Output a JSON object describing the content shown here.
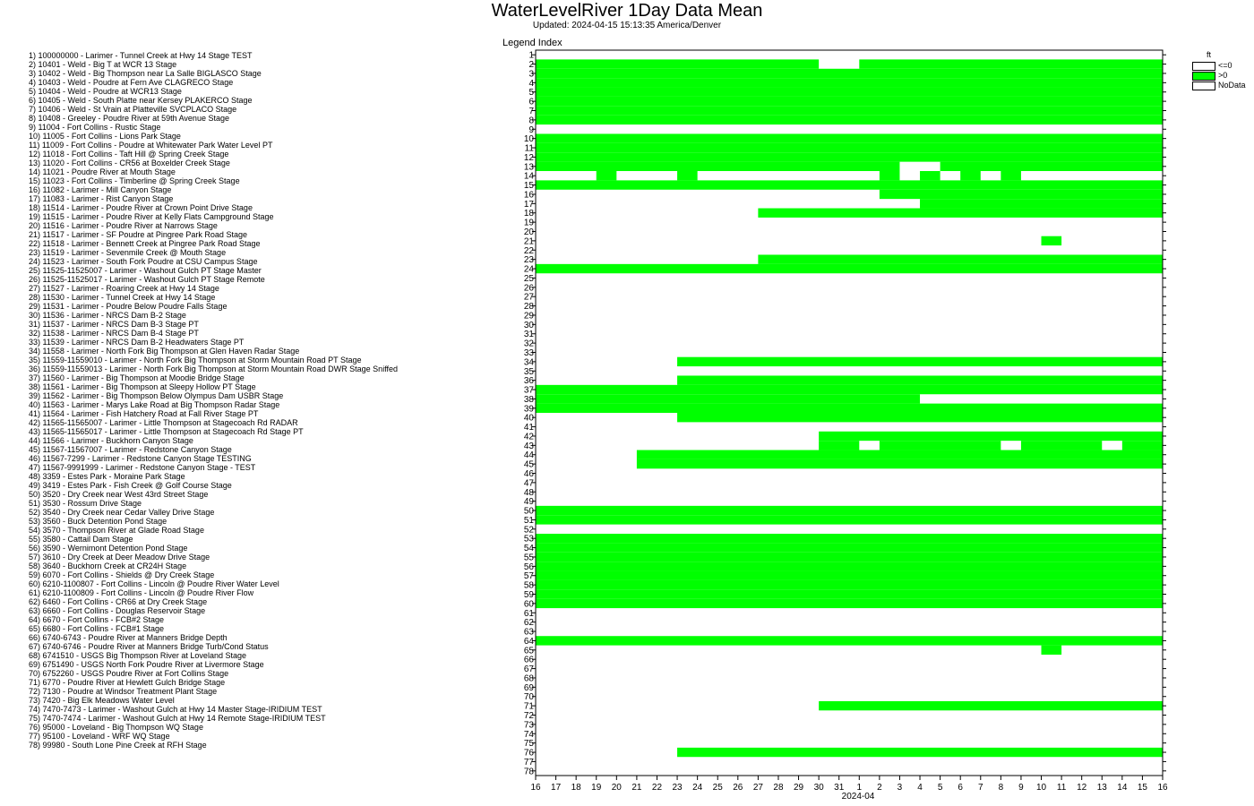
{
  "header": {
    "title": "WaterLevelRiver 1Day Data Mean",
    "subtitle": "Updated: 2024-04-15 15:13:35 America/Denver",
    "legend_index_label": "Legend Index"
  },
  "legend": {
    "units": "ft",
    "entries": [
      {
        "label": "<=0",
        "color": "#ffffff"
      },
      {
        "label": ">0",
        "color": "#00ff00"
      },
      {
        "label": "NoData",
        "color": "#ffffff"
      }
    ]
  },
  "series_list": [
    "1) 100000000 - Larimer - Tunnel Creek at Hwy 14 Stage TEST",
    "2) 10401 - Weld - Big T at WCR 13 Stage",
    "3) 10402 - Weld - Big Thompson near La Salle BIGLASCO Stage",
    "4) 10403 - Weld - Poudre at Fern Ave CLAGRECO Stage",
    "5) 10404 - Weld - Poudre at WCR13 Stage",
    "6) 10405 - Weld - South Platte near Kersey PLAKERCO Stage",
    "7) 10406 - Weld - St Vrain at Platteville SVCPLACO Stage",
    "8) 10408 - Greeley - Poudre River at 59th Avenue Stage",
    "9) 11004 - Fort Collins - Rustic Stage",
    "10) 11005 - Fort Collins - Lions Park Stage",
    "11) 11009 - Fort Collins - Poudre at Whitewater Park Water Level PT",
    "12) 11018 - Fort Collins - Taft Hill @ Spring Creek Stage",
    "13) 11020 - Fort Collins - CR56 at Boxelder Creek Stage",
    "14) 11021 - Poudre River at Mouth Stage",
    "15) 11023 - Fort Collins - Timberline @ Spring Creek Stage",
    "16) 11082 - Larimer - Mill Canyon Stage",
    "17) 11083 - Larimer - Rist Canyon Stage",
    "18) 11514 - Larimer - Poudre River at Crown Point Drive Stage",
    "19) 11515 - Larimer - Poudre River at Kelly Flats Campground Stage",
    "20) 11516 - Larimer - Poudre River at Narrows Stage",
    "21) 11517 - Larimer - SF Poudre at Pingree Park Road Stage",
    "22) 11518 - Larimer - Bennett Creek at Pingree Park Road Stage",
    "23) 11519 - Larimer - Sevenmile Creek @ Mouth Stage",
    "24) 11523 - Larimer - South Fork Poudre at CSU Campus Stage",
    "25) 11525-11525007 - Larimer - Washout Gulch PT Stage Master",
    "26) 11525-11525017 - Larimer - Washout Gulch PT Stage Remote",
    "27) 11527 - Larimer - Roaring Creek at Hwy 14 Stage",
    "28) 11530 - Larimer - Tunnel Creek at Hwy 14 Stage",
    "29) 11531 - Larimer - Poudre Below Poudre Falls Stage",
    "30) 11536 - Larimer - NRCS Dam B-2 Stage",
    "31) 11537 - Larimer - NRCS Dam B-3 Stage PT",
    "32) 11538 - Larimer - NRCS Dam B-4 Stage PT",
    "33) 11539 - Larimer - NRCS Dam B-2 Headwaters Stage PT",
    "34) 11558 - Larimer - North Fork Big Thompson at Glen Haven Radar Stage",
    "35) 11559-11559010 - Larimer - North Fork Big Thompson at Storm Mountain Road PT Stage",
    "36) 11559-11559013 - Larimer - North Fork Big Thompson at Storm Mountain Road DWR Stage Sniffed",
    "37) 11560 - Larimer - Big Thompson at Moodie Bridge Stage",
    "38) 11561 - Larimer - Big Thompson at Sleepy Hollow PT Stage",
    "39) 11562 - Larimer - Big Thompson Below Olympus Dam USBR Stage",
    "40) 11563 - Larimer - Marys Lake Road at Big Thompson Radar Stage",
    "41) 11564 - Larimer - Fish Hatchery Road at Fall River Stage PT",
    "42) 11565-11565007 - Larimer - Little Thompson at Stagecoach Rd RADAR",
    "43) 11565-11565017 - Larimer - Little Thompson at Stagecoach Rd Stage PT",
    "44) 11566 - Larimer - Buckhorn Canyon Stage",
    "45) 11567-11567007 - Larimer - Redstone Canyon Stage",
    "46) 11567-7299 - Larimer - Redstone Canyon Stage TESTING",
    "47) 11567-9991999 - Larimer - Redstone Canyon Stage - TEST",
    "48) 3359 - Estes Park - Moraine Park Stage",
    "49) 3419 - Estes Park - Fish Creek @ Golf Course Stage",
    "50) 3520 - Dry Creek near West 43rd Street Stage",
    "51) 3530 - Rossum Drive Stage",
    "52) 3540 - Dry Creek near Cedar Valley Drive Stage",
    "53) 3560 - Buck Detention Pond Stage",
    "54) 3570 - Thompson River at Glade Road Stage",
    "55) 3580 - Cattail Dam Stage",
    "56) 3590 - Wernimont Detention Pond Stage",
    "57) 3610 - Dry Creek at Deer Meadow Drive Stage",
    "58) 3640 - Buckhorn Creek at CR24H Stage",
    "59) 6070 - Fort Collins - Shields @ Dry Creek Stage",
    "60) 6210-1100807 - Fort Collins - Lincoln @ Poudre River Water Level",
    "61) 6210-1100809 - Fort Collins - Lincoln @ Poudre River Flow",
    "62) 6460 - Fort Collins - CR66 at Dry Creek Stage",
    "63) 6660 - Fort Collins - Douglas Reservoir Stage",
    "64) 6670 - Fort Collins - FCB#2 Stage",
    "65) 6680 - Fort Collins - FCB#1 Stage",
    "66) 6740-6743 - Poudre River at Manners Bridge Depth",
    "67) 6740-6746 - Poudre River at Manners Bridge Turb/Cond Status",
    "68) 6741510 - USGS Big Thompson River at Loveland Stage",
    "69) 6751490 - USGS North Fork Poudre River at Livermore Stage",
    "70) 6752260 - USGS Poudre River at Fort Collins Stage",
    "71) 6770 - Poudre River at Hewlett Gulch Bridge Stage",
    "72) 7130 - Poudre at Windsor Treatment Plant Stage",
    "73) 7420 - Big Elk Meadows Water Level",
    "74) 7470-7473 - Larimer - Washout Gulch at Hwy 14 Master Stage-IRIDIUM TEST",
    "75) 7470-7474 - Larimer - Washout Gulch at Hwy 14 Remote Stage-IRIDIUM TEST",
    "76) 95000 - Loveland - Big Thompson WQ Stage",
    "77) 95100 - Loveland - WRF WQ Stage",
    "78) 99980 - South Lone Pine Creek at RFH Stage"
  ],
  "chart_data": {
    "type": "heatmap",
    "title": "WaterLevelRiver 1Day Data Mean",
    "subtitle": "Updated: 2024-04-15 15:13:35 America/Denver",
    "ylabel": "Legend Index",
    "xlabel": "2024-04",
    "x_tick_labels": [
      "16",
      "17",
      "18",
      "19",
      "20",
      "21",
      "22",
      "23",
      "24",
      "25",
      "26",
      "27",
      "28",
      "29",
      "30",
      "31",
      "1",
      "2",
      "3",
      "4",
      "5",
      "6",
      "7",
      "8",
      "9",
      "10",
      "11",
      "12",
      "13",
      "14",
      "15",
      "16"
    ],
    "y_tick_labels": [
      "1",
      "2",
      "3",
      "4",
      "5",
      "6",
      "7",
      "8",
      "9",
      "10",
      "11",
      "12",
      "13",
      "14",
      "15",
      "16",
      "17",
      "18",
      "19",
      "20",
      "21",
      "22",
      "23",
      "24",
      "25",
      "26",
      "27",
      "28",
      "29",
      "30",
      "31",
      "32",
      "33",
      "34",
      "35",
      "36",
      "37",
      "38",
      "39",
      "40",
      "41",
      "42",
      "43",
      "44",
      "45",
      "46",
      "47",
      "48",
      "49",
      "50",
      "51",
      "52",
      "53",
      "54",
      "55",
      "56",
      "57",
      "58",
      "59",
      "60",
      "61",
      "62",
      "63",
      "64",
      "65",
      "66",
      "67",
      "68",
      "69",
      "70",
      "71",
      "72",
      "73",
      "74",
      "75",
      "76",
      "77",
      "78"
    ],
    "x_start": "2024-03-16",
    "x_end": "2024-04-16",
    "y_range": [
      1,
      78
    ],
    "cell_states": {
      "0": "NoData / <=0",
      "1": ">0"
    },
    "rows": {
      "2": "1111111111111100111111111111111",
      "3": "1111111111111111111111111111111",
      "4": "1111111111111111111111111111111",
      "5": "1111111111111111111111111111111",
      "6": "1111111111111111111111111111111",
      "7": "1111111111111111111111111111111",
      "8": "1111111111111111111111111111111",
      "10": "1111111111111111111111111111111",
      "11": "1111111111111111111111111111111",
      "12": "1111111111111111111111111111111",
      "13": "1111111111111111110011111111111",
      "14": "0001000100000000010101010000000",
      "15": "1111111111111111111111111111111",
      "16": "0000000000000000011111111111111",
      "17": "0000000000000000000111111111111",
      "18": "0000000000011111111111111111111",
      "21": "0000000000000000000000000100000",
      "23": "0000000000011111111111111111111",
      "24": "1111111111111111111111111111111",
      "34": "0000000111111111111111111111111",
      "36": "0000000111111111111111111111111",
      "37": "1111111111111111111111111111111",
      "38": "1111111111111111111000000000000",
      "39": "1111111111111111111111111111111",
      "40": "0000000111111111111111111111111",
      "42": "0000000000000011111111111111111",
      "43": "0000000000000011011111101111011",
      "44": "0000011111111111111111111111111",
      "45": "0000011111111111111111111111111",
      "50": "1111111111111111111111111111111",
      "51": "1111111111111111111111111111111",
      "53": "1111111111111111111111111111111",
      "54": "1111111111111111111111111111111",
      "55": "1111111111111111111111111111111",
      "56": "1111111111111111111111111111111",
      "57": "1111111111111111111111111111111",
      "58": "1111111111111111111111111111111",
      "59": "1111111111111111111111111111111",
      "60": "1111111111111111111111111111111",
      "64": "1111111111111111111111111111111",
      "65": "0000000000000000000000000100000",
      "71": "0000000000000011111111111111111",
      "76": "0000000111111111111111111111111"
    },
    "colors": {
      "positive": "#00ff00",
      "nonpositive": "#ffffff",
      "nodata": "#ffffff",
      "grid": "#000000"
    }
  }
}
